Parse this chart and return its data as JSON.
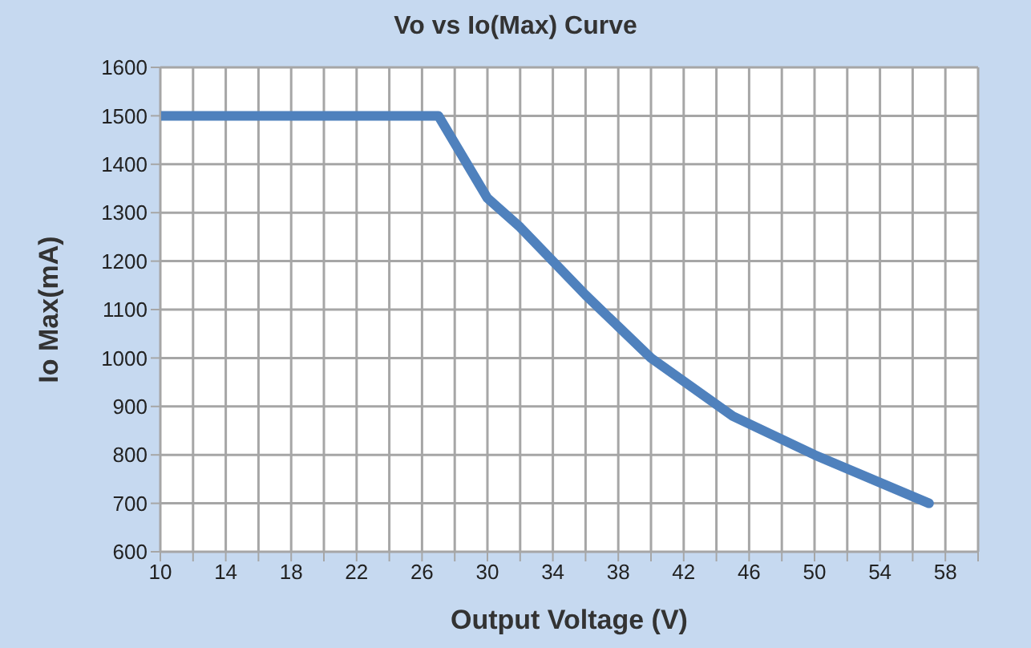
{
  "chart_data": {
    "type": "line",
    "title": "Vo vs Io(Max) Curve",
    "xlabel": "Output Voltage (V)",
    "ylabel": "Io Max(mA)",
    "x": [
      10,
      27,
      30,
      32,
      34,
      36,
      38,
      40,
      45,
      50,
      57
    ],
    "series": [
      {
        "color": "#4f81bd",
        "values": [
          1500,
          1500,
          1330,
          1270,
          1200,
          1130,
          1065,
          1000,
          880,
          800,
          700
        ]
      }
    ],
    "xlim": [
      10,
      60
    ],
    "xticks": [
      10,
      {
        "value": 12,
        "label": null
      },
      14,
      {
        "value": 16,
        "label": null
      },
      18,
      {
        "value": 20,
        "label": null
      },
      22,
      {
        "value": 24,
        "label": null
      },
      26,
      {
        "value": 28,
        "label": null
      },
      30,
      {
        "value": 32,
        "label": null
      },
      34,
      {
        "value": 36,
        "label": null
      },
      38,
      {
        "value": 40,
        "label": null
      },
      42,
      {
        "value": 44,
        "label": null
      },
      46,
      {
        "value": 48,
        "label": null
      },
      50,
      {
        "value": 52,
        "label": null
      },
      54,
      {
        "value": 56,
        "label": null
      },
      58,
      {
        "value": 60,
        "label": null
      }
    ],
    "ylim": [
      600,
      1600
    ],
    "yticks": [
      600,
      700,
      800,
      900,
      1000,
      1100,
      1200,
      1300,
      1400,
      1500,
      1600
    ],
    "grid": true,
    "legend": false,
    "marker": "none",
    "line_style": "solid"
  }
}
